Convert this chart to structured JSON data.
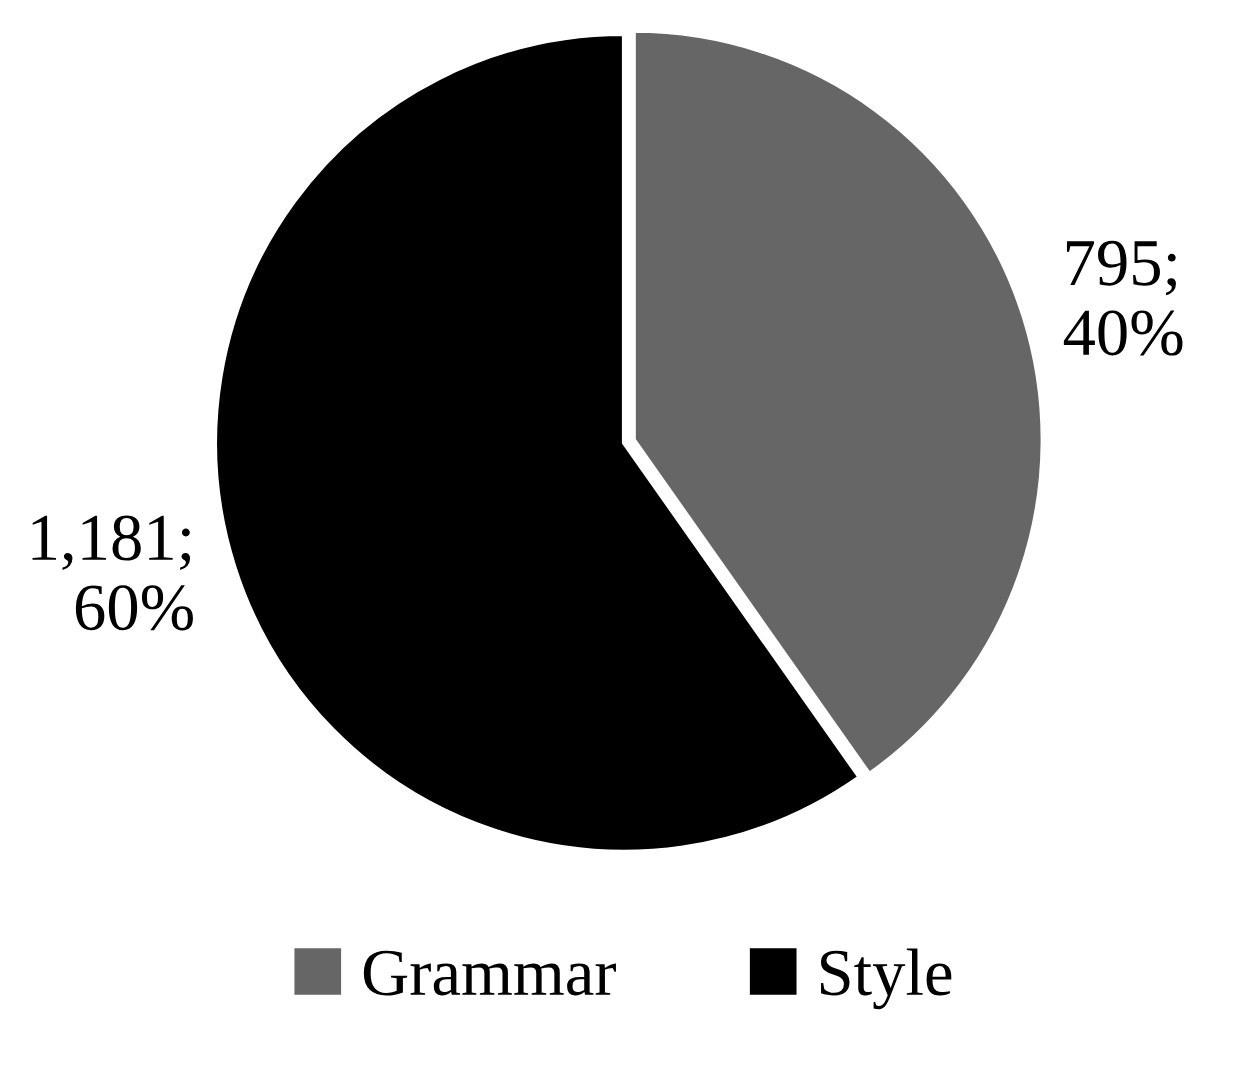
{
  "chart_data": {
    "type": "pie",
    "categories": [
      "Grammar",
      "Style"
    ],
    "values": [
      795,
      1181
    ],
    "colors": [
      "#666666",
      "#000000"
    ],
    "value_labels": [
      "795;\n40%",
      "1,181;\n60%"
    ],
    "legend": "bottom"
  }
}
